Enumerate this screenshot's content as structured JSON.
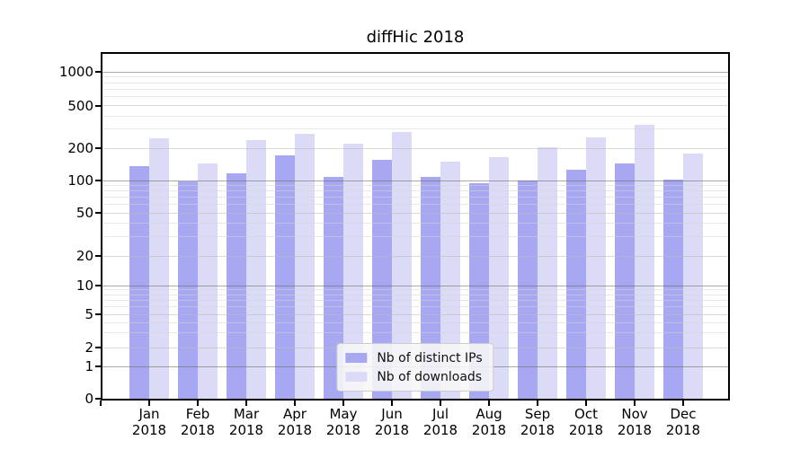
{
  "chart_data": {
    "type": "bar",
    "title": "diffHic 2018",
    "categories": [
      "Jan",
      "Feb",
      "Mar",
      "Apr",
      "May",
      "Jun",
      "Jul",
      "Aug",
      "Sep",
      "Oct",
      "Nov",
      "Dec"
    ],
    "x_tick_year": "2018",
    "series": [
      {
        "name": "Nb of distinct IPs",
        "color": "#a8a8f2",
        "values": [
          137,
          98,
          116,
          170,
          108,
          155,
          108,
          94,
          100,
          125,
          143,
          102
        ]
      },
      {
        "name": "Nb of downloads",
        "color": "#dbdbf8",
        "values": [
          245,
          145,
          240,
          270,
          220,
          285,
          150,
          165,
          205,
          250,
          330,
          177
        ]
      }
    ],
    "y_ticks": [
      0,
      1,
      2,
      5,
      10,
      20,
      50,
      100,
      200,
      500,
      1000
    ],
    "ylim": [
      0,
      1500
    ],
    "y_scale": "log-with-zero-baseline",
    "xlabel": "",
    "ylabel": "",
    "grid": "horizontal",
    "legend_position": "lower center"
  }
}
